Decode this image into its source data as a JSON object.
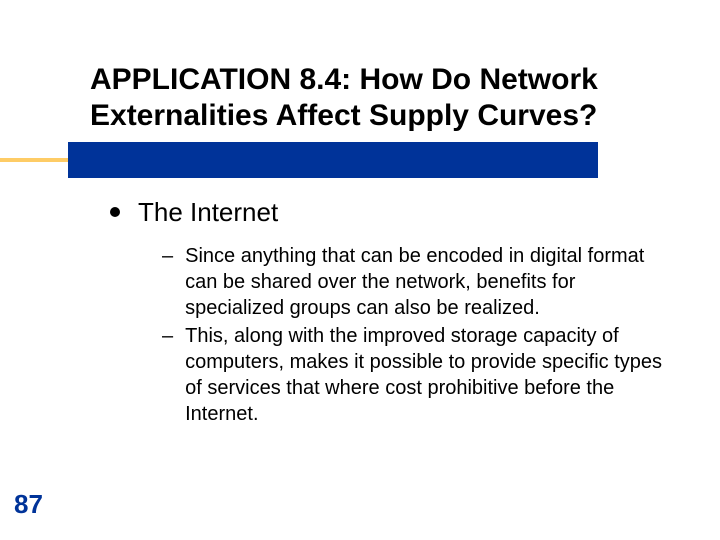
{
  "slide": {
    "title": "APPLICATION 8.4:  How Do Network Externalities Affect Supply Curves?",
    "page_number": "87",
    "colors": {
      "accent_bar": "#003399",
      "accent_line": "#fecc66",
      "title_text": "#000000",
      "body_text": "#000000",
      "page_num_text": "#003399",
      "background": "#ffffff"
    },
    "typography": {
      "title_fontsize": 30,
      "title_weight": "bold",
      "l1_fontsize": 26,
      "l2_fontsize": 20,
      "page_num_fontsize": 26,
      "page_num_weight": "bold"
    },
    "bullets": {
      "l1": {
        "text": "The Internet",
        "marker": "filled-circle",
        "children": [
          {
            "marker": "–",
            "text": "Since anything that can be encoded in digital format can be shared over the network, benefits for specialized groups can also be realized."
          },
          {
            "marker": "–",
            "text": "This, along with the improved storage capacity of computers, makes it possible to provide specific types of services that where cost prohibitive before the Internet."
          }
        ]
      }
    }
  }
}
